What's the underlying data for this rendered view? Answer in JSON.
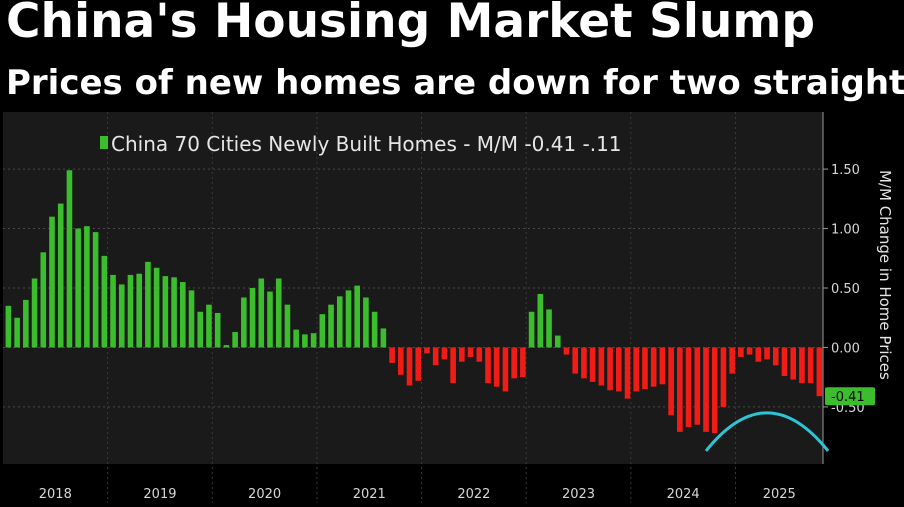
{
  "header": {
    "title": "China's Housing Market Slump",
    "subtitle": "Prices of new homes are down for two straight years"
  },
  "colors": {
    "positive": "#3cbd2e",
    "negative": "#f01c16",
    "arc": "#2fc4d4",
    "background": "#000000",
    "plot_background": "#1a1a1a",
    "grid": "#4a4a4a",
    "last_value_badge": "#3cbd2e"
  },
  "chart_data": {
    "type": "bar",
    "legend": "China 70 Cities Newly Built Homes - M/M -0.41 -.11",
    "ylabel": "M/M Change in Home Prices",
    "ylim": [
      -0.98,
      1.98
    ],
    "yticks": [
      1.5,
      1.0,
      0.5,
      0.0,
      -0.5
    ],
    "ytick_labels": [
      "1.50",
      "1.00",
      "0.50",
      "0.00",
      "-0.50"
    ],
    "last_value_label": "-0.41",
    "years": [
      "2018",
      "2019",
      "2020",
      "2021",
      "2022",
      "2023",
      "2024",
      "2025"
    ],
    "start": "2018-01",
    "values": [
      0.35,
      0.25,
      0.4,
      0.58,
      0.8,
      1.1,
      1.21,
      1.49,
      1.0,
      1.02,
      0.97,
      0.77,
      0.61,
      0.53,
      0.61,
      0.62,
      0.72,
      0.67,
      0.6,
      0.59,
      0.55,
      0.48,
      0.3,
      0.36,
      0.29,
      0.02,
      0.13,
      0.42,
      0.5,
      0.58,
      0.47,
      0.58,
      0.36,
      0.15,
      0.11,
      0.12,
      0.28,
      0.36,
      0.43,
      0.48,
      0.52,
      0.42,
      0.3,
      0.16,
      -0.13,
      -0.23,
      -0.32,
      -0.28,
      -0.05,
      -0.15,
      -0.1,
      -0.3,
      -0.12,
      -0.08,
      -0.12,
      -0.3,
      -0.33,
      -0.37,
      -0.26,
      -0.25,
      0.3,
      0.45,
      0.32,
      0.1,
      -0.06,
      -0.22,
      -0.26,
      -0.29,
      -0.32,
      -0.36,
      -0.37,
      -0.43,
      -0.37,
      -0.35,
      -0.33,
      -0.31,
      -0.57,
      -0.71,
      -0.67,
      -0.65,
      -0.71,
      -0.72,
      -0.5,
      -0.22,
      -0.08,
      -0.06,
      -0.12,
      -0.1,
      -0.15,
      -0.24,
      -0.27,
      -0.3,
      -0.3,
      -0.41
    ],
    "annotation": {
      "type": "arc",
      "from": "2024-09",
      "to": "2025-11",
      "peak_value": -0.55,
      "end_value": -0.87
    }
  }
}
